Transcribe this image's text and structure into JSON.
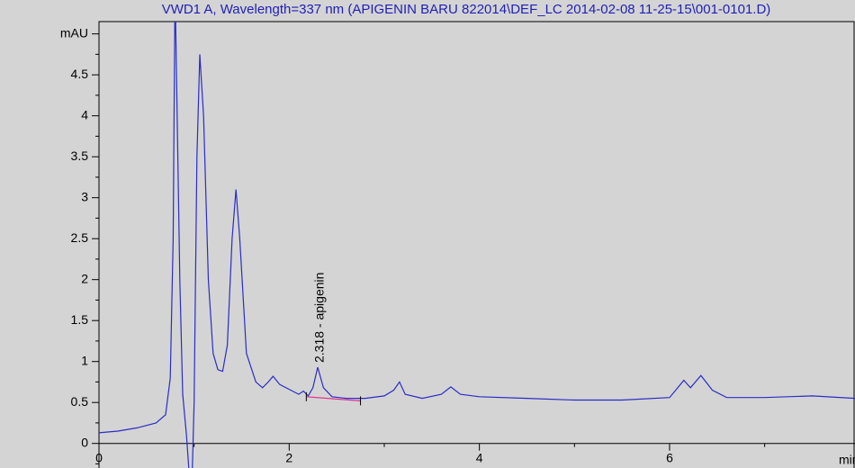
{
  "chart_data": {
    "type": "line",
    "title": "VWD1 A, Wavelength=337 nm (APIGENIN BARU 822014\\DEF_LC 2014-02-08 11-25-15\\001-0101.D)",
    "x_label": "min",
    "xlim": [
      0,
      7.95
    ],
    "ylim": [
      -0.3,
      5.15
    ],
    "xticks": [
      0,
      2,
      4,
      6
    ],
    "yticks": [
      0,
      0.5,
      1,
      1.5,
      2,
      2.5,
      3,
      3.5,
      4,
      4.5,
      {
        "value": 5,
        "label": "mAU"
      }
    ],
    "series": [
      {
        "color": "#2b2bc8",
        "x": [
          0,
          0.2,
          0.4,
          0.6,
          0.7,
          0.75,
          0.78,
          0.8,
          0.85,
          0.88,
          0.92,
          0.95,
          0.98,
          1.0,
          1.03,
          1.06,
          1.1,
          1.15,
          1.2,
          1.25,
          1.3,
          1.35,
          1.4,
          1.44,
          1.48,
          1.55,
          1.65,
          1.72,
          1.78,
          1.83,
          1.9,
          2.0,
          2.1,
          2.15,
          2.2,
          2.25,
          2.3,
          2.36,
          2.45,
          2.6,
          2.8,
          3.0,
          3.1,
          3.16,
          3.22,
          3.4,
          3.6,
          3.7,
          3.8,
          4.0,
          4.5,
          5.0,
          5.5,
          6.0,
          6.15,
          6.22,
          6.33,
          6.45,
          6.6,
          7.0,
          7.5,
          7.95
        ],
        "values": [
          0.13,
          0.15,
          0.19,
          0.25,
          0.35,
          0.8,
          2.5,
          5.6,
          2.0,
          0.6,
          0.1,
          -0.4,
          -0.4,
          0.5,
          3.5,
          4.75,
          4.0,
          2.0,
          1.1,
          0.9,
          0.88,
          1.2,
          2.5,
          3.1,
          2.5,
          1.1,
          0.75,
          0.68,
          0.75,
          0.82,
          0.72,
          0.66,
          0.6,
          0.64,
          0.58,
          0.68,
          0.93,
          0.68,
          0.57,
          0.55,
          0.55,
          0.58,
          0.65,
          0.75,
          0.6,
          0.55,
          0.6,
          0.69,
          0.6,
          0.57,
          0.55,
          0.53,
          0.53,
          0.56,
          0.77,
          0.68,
          0.83,
          0.65,
          0.56,
          0.56,
          0.58,
          0.55
        ]
      }
    ],
    "baseline": {
      "color": "#e0308a",
      "x": [
        2.18,
        2.75
      ],
      "values": [
        0.57,
        0.52
      ]
    },
    "annotation": "2.318 - apigenin"
  }
}
